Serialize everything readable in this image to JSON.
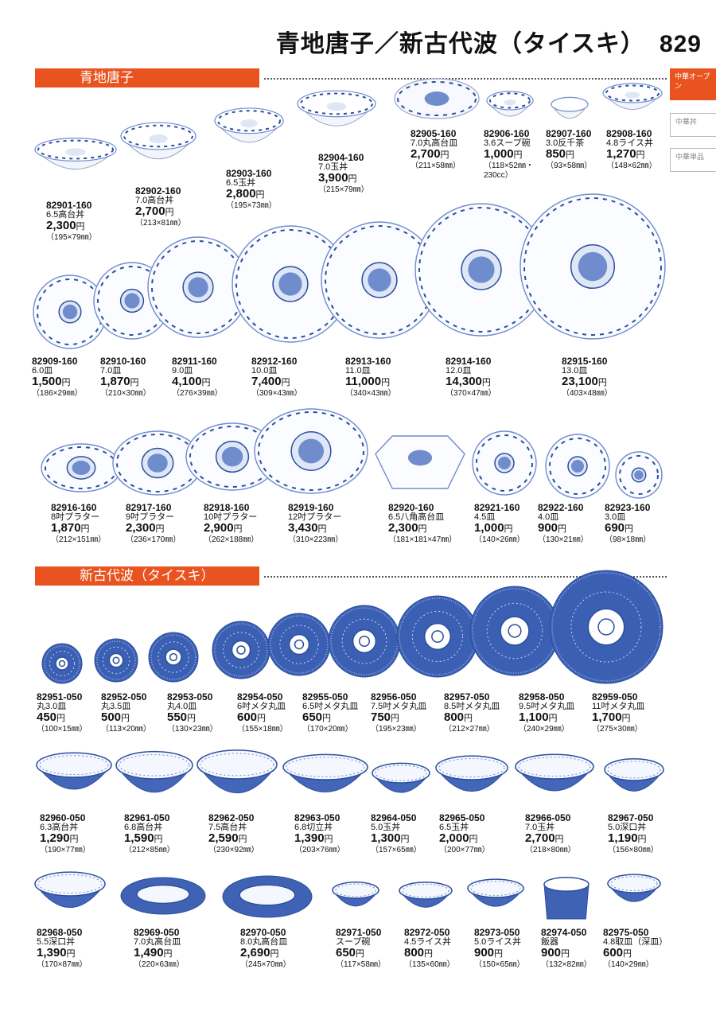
{
  "header": {
    "title": "青地唐子／新古代波（タイスキ）",
    "page_number": "829"
  },
  "side_tabs": [
    {
      "label": "中華オープン",
      "active": true
    },
    {
      "label": "中華丼",
      "active": false
    },
    {
      "label": "中華単品",
      "active": false
    }
  ],
  "sections": [
    {
      "title": "青地唐子"
    },
    {
      "title": "新古代波（タイスキ）"
    }
  ],
  "currency": "円",
  "products": [
    {
      "code": "82901-160",
      "name": "6.5高台丼",
      "price": "2,300",
      "size": "（195×79㎜）"
    },
    {
      "code": "82902-160",
      "name": "7.0高台丼",
      "price": "2,700",
      "size": "（213×81㎜）"
    },
    {
      "code": "82903-160",
      "name": "6.5玉丼",
      "price": "2,800",
      "size": "（195×73㎜）"
    },
    {
      "code": "82904-160",
      "name": "7.0玉丼",
      "price": "3,900",
      "size": "（215×79㎜）"
    },
    {
      "code": "82905-160",
      "name": "7.0丸高台皿",
      "price": "2,700",
      "size": "（211×58㎜）"
    },
    {
      "code": "82906-160",
      "name": "3.6スープ碗",
      "price": "1,000",
      "size": "（118×52㎜・230cc）"
    },
    {
      "code": "82907-160",
      "name": "3.0反千茶",
      "price": "850",
      "size": "（93×58㎜）"
    },
    {
      "code": "82908-160",
      "name": "4.8ライス丼",
      "price": "1,270",
      "size": "（148×62㎜）"
    },
    {
      "code": "82909-160",
      "name": "6.0皿",
      "price": "1,500",
      "size": "（186×29㎜）"
    },
    {
      "code": "82910-160",
      "name": "7.0皿",
      "price": "1,870",
      "size": "（210×30㎜）"
    },
    {
      "code": "82911-160",
      "name": "9.0皿",
      "price": "4,100",
      "size": "（276×39㎜）"
    },
    {
      "code": "82912-160",
      "name": "10.0皿",
      "price": "7,400",
      "size": "（309×43㎜）"
    },
    {
      "code": "82913-160",
      "name": "11.0皿",
      "price": "11,000",
      "size": "（340×43㎜）"
    },
    {
      "code": "82914-160",
      "name": "12.0皿",
      "price": "14,300",
      "size": "（370×47㎜）"
    },
    {
      "code": "82915-160",
      "name": "13.0皿",
      "price": "23,100",
      "size": "（403×48㎜）"
    },
    {
      "code": "82916-160",
      "name": "8吋プラター",
      "price": "1,870",
      "size": "（212×151㎜）"
    },
    {
      "code": "82917-160",
      "name": "9吋プラター",
      "price": "2,300",
      "size": "（236×170㎜）"
    },
    {
      "code": "82918-160",
      "name": "10吋プラター",
      "price": "2,900",
      "size": "（262×188㎜）"
    },
    {
      "code": "82919-160",
      "name": "12吋プラター",
      "price": "3,430",
      "size": "（310×223㎜）"
    },
    {
      "code": "82920-160",
      "name": "6.5八角高台皿",
      "price": "2,300",
      "size": "（181×181×47㎜）"
    },
    {
      "code": "82921-160",
      "name": "4.5皿",
      "price": "1,000",
      "size": "（140×26㎜）"
    },
    {
      "code": "82922-160",
      "name": "4.0皿",
      "price": "900",
      "size": "（130×21㎜）"
    },
    {
      "code": "82923-160",
      "name": "3.0皿",
      "price": "690",
      "size": "（98×18㎜）"
    },
    {
      "code": "82951-050",
      "name": "丸3.0皿",
      "price": "450",
      "size": "（100×15㎜）"
    },
    {
      "code": "82952-050",
      "name": "丸3.5皿",
      "price": "500",
      "size": "（113×20㎜）"
    },
    {
      "code": "82953-050",
      "name": "丸4.0皿",
      "price": "550",
      "size": "（130×23㎜）"
    },
    {
      "code": "82954-050",
      "name": "6吋メタ丸皿",
      "price": "600",
      "size": "（155×18㎜）"
    },
    {
      "code": "82955-050",
      "name": "6.5吋メタ丸皿",
      "price": "650",
      "size": "（170×20㎜）"
    },
    {
      "code": "82956-050",
      "name": "7.5吋メタ丸皿",
      "price": "750",
      "size": "（195×23㎜）"
    },
    {
      "code": "82957-050",
      "name": "8.5吋メタ丸皿",
      "price": "800",
      "size": "（212×27㎜）"
    },
    {
      "code": "82958-050",
      "name": "9.5吋メタ丸皿",
      "price": "1,100",
      "size": "（240×29㎜）"
    },
    {
      "code": "82959-050",
      "name": "11吋メタ丸皿",
      "price": "1,700",
      "size": "（275×30㎜）"
    },
    {
      "code": "82960-050",
      "name": "6.3高台丼",
      "price": "1,290",
      "size": "（190×77㎜）"
    },
    {
      "code": "82961-050",
      "name": "6.8高台丼",
      "price": "1,590",
      "size": "（212×85㎜）"
    },
    {
      "code": "82962-050",
      "name": "7.5高台丼",
      "price": "2,590",
      "size": "（230×92㎜）"
    },
    {
      "code": "82963-050",
      "name": "6.8切立丼",
      "price": "1,390",
      "size": "（203×76㎜）"
    },
    {
      "code": "82964-050",
      "name": "5.0玉丼",
      "price": "1,300",
      "size": "（157×65㎜）"
    },
    {
      "code": "82965-050",
      "name": "6.5玉丼",
      "price": "2,000",
      "size": "（200×77㎜）"
    },
    {
      "code": "82966-050",
      "name": "7.0玉丼",
      "price": "2,700",
      "size": "（218×80㎜）"
    },
    {
      "code": "82967-050",
      "name": "5.0深口丼",
      "price": "1,190",
      "size": "（156×80㎜）"
    },
    {
      "code": "82968-050",
      "name": "5.5深口丼",
      "price": "1,390",
      "size": "（170×87㎜）"
    },
    {
      "code": "82969-050",
      "name": "7.0丸高台皿",
      "price": "1,490",
      "size": "（220×63㎜）"
    },
    {
      "code": "82970-050",
      "name": "8.0丸高台皿",
      "price": "2,690",
      "size": "（245×70㎜）"
    },
    {
      "code": "82971-050",
      "name": "スープ碗",
      "price": "650",
      "size": "（117×58㎜）"
    },
    {
      "code": "82972-050",
      "name": "4.5ライス丼",
      "price": "800",
      "size": "（135×60㎜）"
    },
    {
      "code": "82973-050",
      "name": "5.0ライス丼",
      "price": "900",
      "size": "（150×65㎜）"
    },
    {
      "code": "82974-050",
      "name": "飯器",
      "price": "900",
      "size": "（132×82㎜）"
    },
    {
      "code": "82975-050",
      "name": "4.8取皿（深皿）",
      "price": "600",
      "size": "（140×29㎜）"
    }
  ]
}
